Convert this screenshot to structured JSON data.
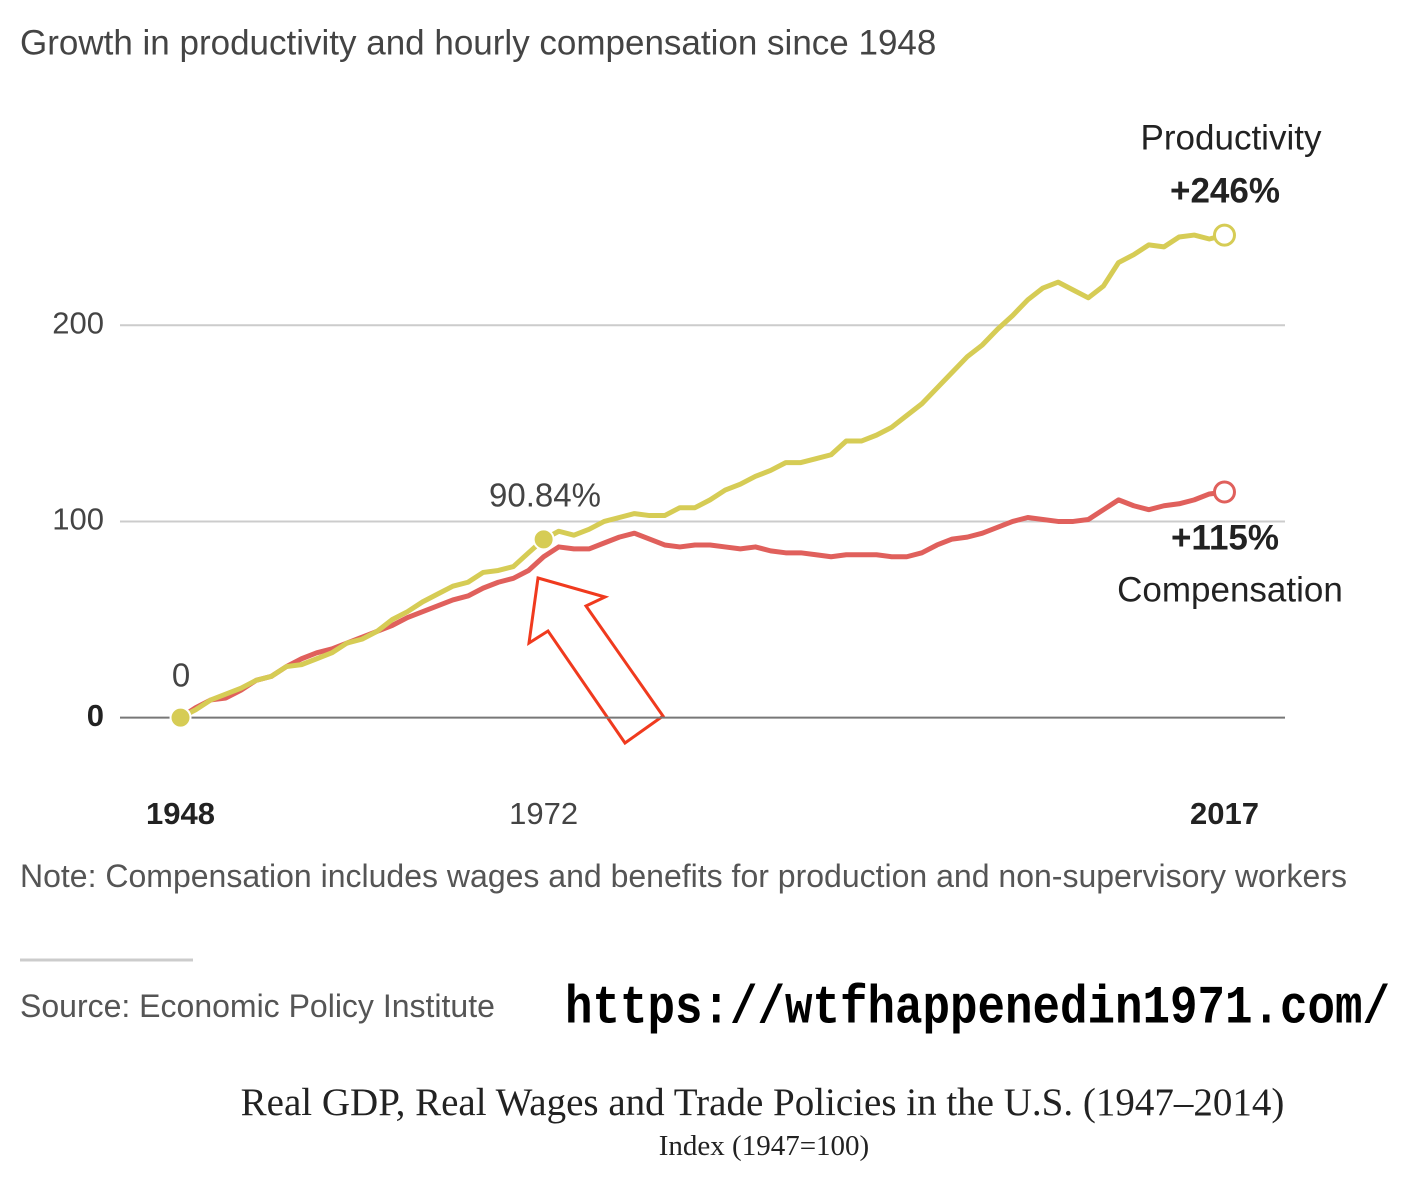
{
  "chart_data": {
    "type": "line",
    "title": "Growth in productivity and hourly compensation since 1948",
    "x": [
      1948,
      1949,
      1950,
      1951,
      1952,
      1953,
      1954,
      1955,
      1956,
      1957,
      1958,
      1959,
      1960,
      1961,
      1962,
      1963,
      1964,
      1965,
      1966,
      1967,
      1968,
      1969,
      1970,
      1971,
      1972,
      1973,
      1974,
      1975,
      1976,
      1977,
      1978,
      1979,
      1980,
      1981,
      1982,
      1983,
      1984,
      1985,
      1986,
      1987,
      1988,
      1989,
      1990,
      1991,
      1992,
      1993,
      1994,
      1995,
      1996,
      1997,
      1998,
      1999,
      2000,
      2001,
      2002,
      2003,
      2004,
      2005,
      2006,
      2007,
      2008,
      2009,
      2010,
      2011,
      2012,
      2013,
      2014,
      2015,
      2016,
      2017
    ],
    "series": [
      {
        "name": "Productivity",
        "color": "#d6cc55",
        "values": [
          0,
          4,
          9,
          12,
          15,
          19,
          21,
          26,
          27,
          30,
          33,
          38,
          40,
          44,
          50,
          54,
          59,
          63,
          67,
          69,
          74,
          75,
          77,
          84,
          90.84,
          95,
          93,
          96,
          100,
          102,
          104,
          103,
          103,
          107,
          107,
          111,
          116,
          119,
          123,
          126,
          130,
          130,
          132,
          134,
          141,
          141,
          144,
          148,
          154,
          160,
          168,
          176,
          184,
          190,
          198,
          205,
          213,
          219,
          222,
          218,
          214,
          220,
          232,
          236,
          241,
          240,
          245,
          246,
          244,
          246
        ]
      },
      {
        "name": "Compensation",
        "color": "#e0605c",
        "values": [
          0,
          5,
          9,
          10,
          14,
          19,
          21,
          26,
          30,
          33,
          35,
          38,
          41,
          44,
          47,
          51,
          54,
          57,
          60,
          62,
          66,
          69,
          71,
          75,
          82,
          87,
          86,
          86,
          89,
          92,
          94,
          91,
          88,
          87,
          88,
          88,
          87,
          86,
          87,
          85,
          84,
          84,
          83,
          82,
          83,
          83,
          83,
          82,
          82,
          84,
          88,
          91,
          92,
          94,
          97,
          100,
          102,
          101,
          100,
          100,
          101,
          106,
          111,
          108,
          106,
          108,
          109,
          111,
          114,
          115
        ]
      }
    ],
    "annotations": [
      "0",
      "90.84%",
      "+246%",
      "+115%"
    ],
    "xlim": [
      1944,
      2021
    ],
    "xticks": [
      1948,
      1972,
      2017
    ],
    "ylim": [
      -15,
      270
    ],
    "yticks": [
      0,
      100,
      200
    ],
    "grid": true,
    "note": "Note: Compensation includes wages and benefits for production and non-supervisory workers",
    "source": "Source: Economic Policy Institute"
  },
  "watermark": "https://wtfhappenedin1971.com/",
  "footer": {
    "title": "Real GDP, Real Wages and Trade Policies in the U.S. (1947–2014)",
    "subtitle": "Index (1947=100)"
  }
}
